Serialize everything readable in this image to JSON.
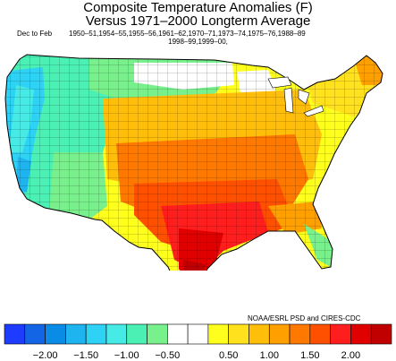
{
  "title_line1": "Composite Temperature Anomalies (F)",
  "title_line2": "Versus 1971–2000 Longterm Average",
  "period": "Dec to Feb",
  "years_line1": "1950–51,1954–55,1955–56,1961–62,1970–71,1973–74,1975–76,1988–89",
  "years_line2": "1998–99,1999–00,",
  "credit": "NOAA/ESRL PSD and CIRES-CDC",
  "colorbar": {
    "colors": [
      "#1e3cff",
      "#1464e6",
      "#0a8ce6",
      "#1eb4f0",
      "#2dd2f5",
      "#46ebe6",
      "#4bf0b4",
      "#78f08c",
      "#ffffff",
      "#ffffff",
      "#ffff1e",
      "#ffe11e",
      "#ffbe0a",
      "#ffa000",
      "#ff7800",
      "#ff5000",
      "#ff1e1e",
      "#e10000",
      "#c00000"
    ],
    "tick_labels": [
      "−2.00",
      "−1.50",
      "−1.00",
      "−0.50",
      "0.50",
      "1.00",
      "1.50",
      "2.00"
    ]
  }
}
